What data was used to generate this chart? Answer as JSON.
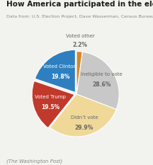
{
  "title": "How America participated in the election",
  "subtitle": "Data from: U.S. Election Project, Dave Wasserman, Census Bureau.",
  "footer": "(The Washington Post)",
  "slices": [
    {
      "label_line1": "Voted Clinton",
      "label_line2": "19.8%",
      "value": 19.8,
      "color": "#2E7FBF",
      "labelcolor": "white"
    },
    {
      "label_line1": "Voted Trump",
      "label_line2": "19.5%",
      "value": 19.5,
      "color": "#C0392B",
      "labelcolor": "white"
    },
    {
      "label_line1": "Didn’t vote",
      "label_line2": "29.9%",
      "value": 29.9,
      "color": "#F0D898",
      "labelcolor": "#666666"
    },
    {
      "label_line1": "Ineligible to vote",
      "label_line2": "28.6%",
      "value": 28.6,
      "color": "#C8C8C8",
      "labelcolor": "#666666"
    },
    {
      "label_line1": "Voted other",
      "label_line2": "2.2%",
      "value": 2.2,
      "color": "#D4882A",
      "labelcolor": "#666666"
    }
  ],
  "explode": [
    0.04,
    0.04,
    0.0,
    0.0,
    0.0
  ],
  "startangle": 90,
  "title_fontsize": 7.5,
  "subtitle_fontsize": 4.5,
  "footer_fontsize": 5.0,
  "label_fontsize": 5.0,
  "label_bold_fontsize": 5.5,
  "bg_color": "#F2F2EE"
}
